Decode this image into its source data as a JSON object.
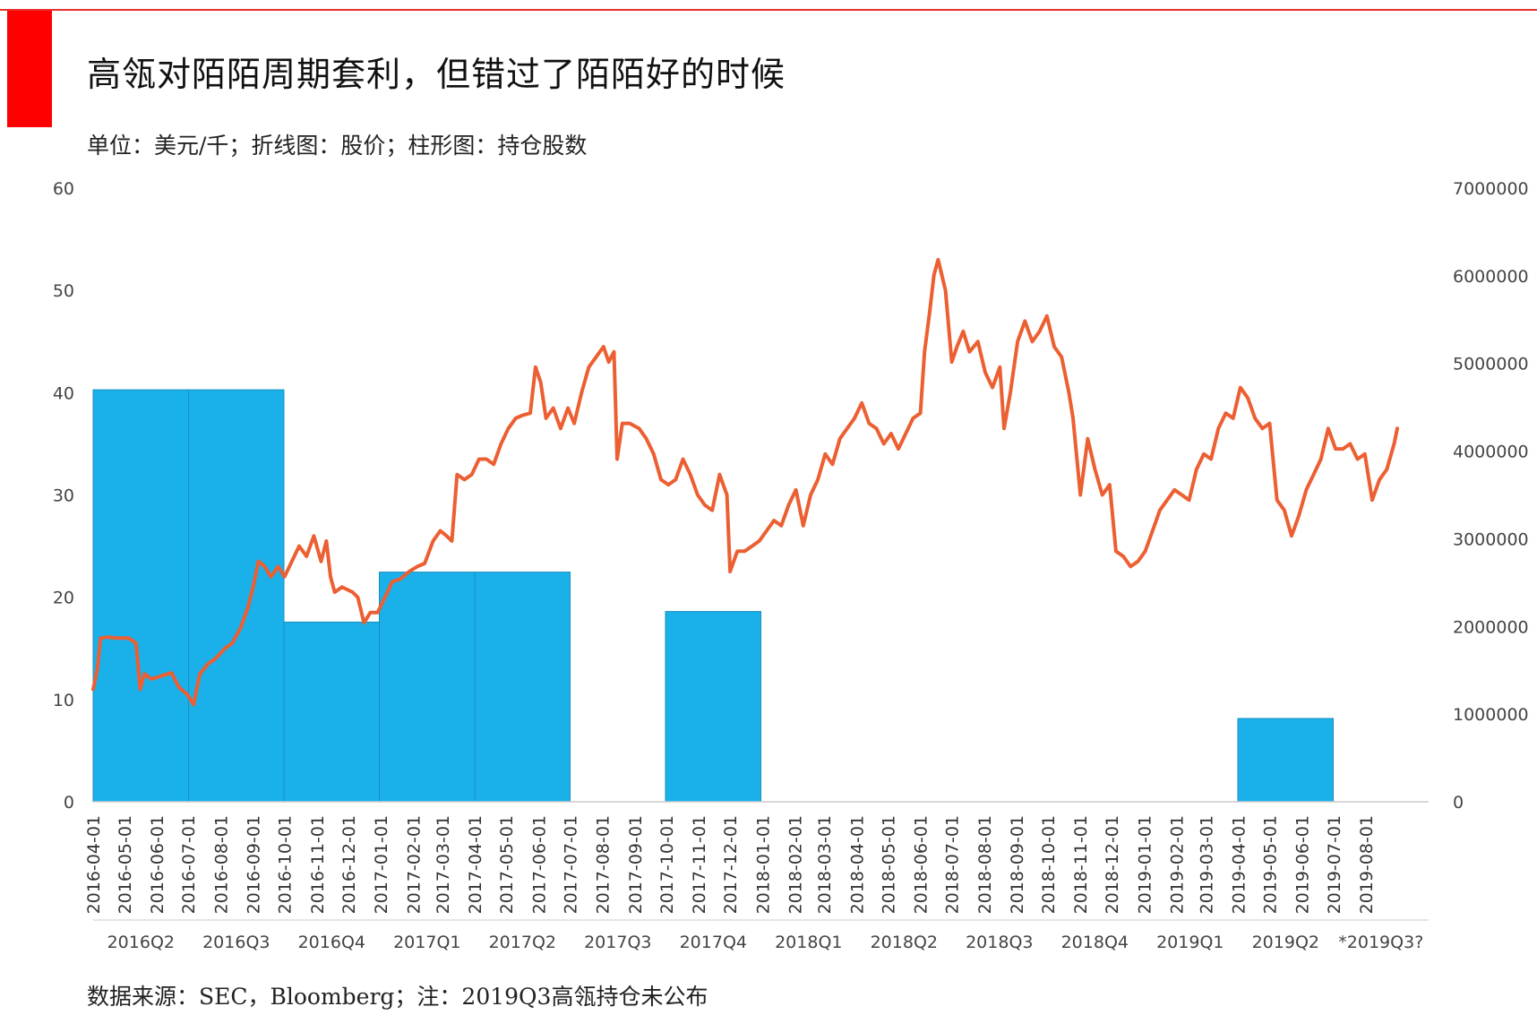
{
  "header": {
    "title": "高瓴对陌陌周期套利，但错过了陌陌好的时候",
    "subtitle": "单位：美元/千；折线图：股价；柱形图：持仓股数"
  },
  "footer": {
    "source": "数据来源：SEC，Bloomberg；注：2019Q3高瓴持仓未公布"
  },
  "colors": {
    "accent_red": "#ff0000",
    "line": "#ec5f32",
    "bar": "#1ab0ea"
  },
  "chart_data": {
    "type": "bar+line",
    "y_left": {
      "ticks": [
        "0",
        "10",
        "20",
        "30",
        "40",
        "50",
        "60"
      ],
      "range": [
        0,
        60
      ]
    },
    "y_right": {
      "ticks": [
        "0",
        "1000000",
        "2000000",
        "3000000",
        "4000000",
        "5000000",
        "6000000",
        "7000000"
      ],
      "range": [
        0,
        7000000
      ]
    },
    "dates": [
      "2016-04-01",
      "2016-05-01",
      "2016-06-01",
      "2016-07-01",
      "2016-08-01",
      "2016-09-01",
      "2016-10-01",
      "2016-11-01",
      "2016-12-01",
      "2017-01-01",
      "2017-02-01",
      "2017-03-01",
      "2017-04-01",
      "2017-05-01",
      "2017-06-01",
      "2017-07-01",
      "2017-08-01",
      "2017-09-01",
      "2017-10-01",
      "2017-11-01",
      "2017-12-01",
      "2018-01-01",
      "2018-02-01",
      "2018-03-01",
      "2018-04-01",
      "2018-05-01",
      "2018-06-01",
      "2018-07-01",
      "2018-08-01",
      "2018-09-01",
      "2018-10-01",
      "2018-11-01",
      "2018-12-01",
      "2019-01-01",
      "2019-02-01",
      "2019-03-01",
      "2019-04-01",
      "2019-05-01",
      "2019-06-01",
      "2019-07-01",
      "2019-08-01"
    ],
    "quarters": [
      "2016Q2",
      "2016Q3",
      "2016Q4",
      "2017Q1",
      "2017Q2",
      "2017Q3",
      "2017Q4",
      "2018Q1",
      "2018Q2",
      "2018Q3",
      "2018Q4",
      "2019Q1",
      "2019Q2",
      "*2019Q3?"
    ],
    "bar_series": {
      "axis": "right",
      "values": [
        4700000,
        4700000,
        2050000,
        2620000,
        2620000,
        0,
        2170000,
        0,
        0,
        0,
        0,
        0,
        950000,
        null
      ]
    },
    "line_series": {
      "axis": "left",
      "points": [
        [
          "2016-04-01",
          11.0
        ],
        [
          "2016-04-05",
          13.0
        ],
        [
          "2016-04-08",
          16.0
        ],
        [
          "2016-04-15",
          16.1
        ],
        [
          "2016-04-25",
          16.0
        ],
        [
          "2016-05-05",
          16.0
        ],
        [
          "2016-05-12",
          15.5
        ],
        [
          "2016-05-16",
          11.0
        ],
        [
          "2016-05-20",
          12.5
        ],
        [
          "2016-05-27",
          12.0
        ],
        [
          "2016-06-05",
          12.3
        ],
        [
          "2016-06-15",
          12.6
        ],
        [
          "2016-06-22",
          11.2
        ],
        [
          "2016-06-30",
          10.5
        ],
        [
          "2016-07-06",
          9.5
        ],
        [
          "2016-07-12",
          12.5
        ],
        [
          "2016-07-20",
          13.5
        ],
        [
          "2016-07-27",
          14.0
        ],
        [
          "2016-08-05",
          15.0
        ],
        [
          "2016-08-12",
          15.5
        ],
        [
          "2016-08-20",
          17.0
        ],
        [
          "2016-08-27",
          19.0
        ],
        [
          "2016-09-01",
          21.0
        ],
        [
          "2016-09-06",
          23.5
        ],
        [
          "2016-09-12",
          23.0
        ],
        [
          "2016-09-18",
          22.0
        ],
        [
          "2016-09-25",
          23.0
        ],
        [
          "2016-10-01",
          22.0
        ],
        [
          "2016-10-08",
          23.5
        ],
        [
          "2016-10-15",
          25.0
        ],
        [
          "2016-10-22",
          24.0
        ],
        [
          "2016-10-29",
          26.0
        ],
        [
          "2016-11-05",
          23.5
        ],
        [
          "2016-11-10",
          25.5
        ],
        [
          "2016-11-14",
          22.0
        ],
        [
          "2016-11-18",
          20.5
        ],
        [
          "2016-11-25",
          21.0
        ],
        [
          "2016-12-05",
          20.5
        ],
        [
          "2016-12-10",
          20.0
        ],
        [
          "2016-12-16",
          17.5
        ],
        [
          "2016-12-22",
          18.5
        ],
        [
          "2016-12-29",
          18.5
        ],
        [
          "2017-01-05",
          20.0
        ],
        [
          "2017-01-12",
          21.5
        ],
        [
          "2017-01-20",
          21.8
        ],
        [
          "2017-01-28",
          22.5
        ],
        [
          "2017-02-05",
          23.0
        ],
        [
          "2017-02-12",
          23.3
        ],
        [
          "2017-02-20",
          25.5
        ],
        [
          "2017-02-27",
          26.5
        ],
        [
          "2017-03-05",
          26.0
        ],
        [
          "2017-03-10",
          25.5
        ],
        [
          "2017-03-15",
          32.0
        ],
        [
          "2017-03-22",
          31.5
        ],
        [
          "2017-03-29",
          32.0
        ],
        [
          "2017-04-05",
          33.5
        ],
        [
          "2017-04-12",
          33.5
        ],
        [
          "2017-04-19",
          33.0
        ],
        [
          "2017-04-26",
          35.0
        ],
        [
          "2017-05-03",
          36.5
        ],
        [
          "2017-05-10",
          37.5
        ],
        [
          "2017-05-17",
          37.8
        ],
        [
          "2017-05-24",
          38.0
        ],
        [
          "2017-05-29",
          42.5
        ],
        [
          "2017-06-03",
          41.0
        ],
        [
          "2017-06-08",
          37.5
        ],
        [
          "2017-06-15",
          38.5
        ],
        [
          "2017-06-22",
          36.5
        ],
        [
          "2017-06-29",
          38.5
        ],
        [
          "2017-07-05",
          37.0
        ],
        [
          "2017-07-12",
          40.0
        ],
        [
          "2017-07-19",
          42.5
        ],
        [
          "2017-07-26",
          43.5
        ],
        [
          "2017-08-02",
          44.5
        ],
        [
          "2017-08-07",
          43.0
        ],
        [
          "2017-08-12",
          44.0
        ],
        [
          "2017-08-15",
          33.5
        ],
        [
          "2017-08-20",
          37.0
        ],
        [
          "2017-08-27",
          37.0
        ],
        [
          "2017-09-05",
          36.5
        ],
        [
          "2017-09-12",
          35.5
        ],
        [
          "2017-09-19",
          34.0
        ],
        [
          "2017-09-26",
          31.5
        ],
        [
          "2017-10-03",
          31.0
        ],
        [
          "2017-10-10",
          31.5
        ],
        [
          "2017-10-17",
          33.5
        ],
        [
          "2017-10-24",
          32.0
        ],
        [
          "2017-10-31",
          30.0
        ],
        [
          "2017-11-07",
          29.0
        ],
        [
          "2017-11-14",
          28.5
        ],
        [
          "2017-11-21",
          32.0
        ],
        [
          "2017-11-28",
          30.0
        ],
        [
          "2017-12-01",
          22.5
        ],
        [
          "2017-12-08",
          24.5
        ],
        [
          "2017-12-15",
          24.5
        ],
        [
          "2017-12-22",
          25.0
        ],
        [
          "2017-12-29",
          25.5
        ],
        [
          "2018-01-05",
          26.5
        ],
        [
          "2018-01-12",
          27.5
        ],
        [
          "2018-01-19",
          27.0
        ],
        [
          "2018-01-26",
          29.0
        ],
        [
          "2018-02-02",
          30.5
        ],
        [
          "2018-02-09",
          27.0
        ],
        [
          "2018-02-16",
          30.0
        ],
        [
          "2018-02-23",
          31.5
        ],
        [
          "2018-03-02",
          34.0
        ],
        [
          "2018-03-09",
          33.0
        ],
        [
          "2018-03-16",
          35.5
        ],
        [
          "2018-03-23",
          36.5
        ],
        [
          "2018-03-30",
          37.5
        ],
        [
          "2018-04-06",
          39.0
        ],
        [
          "2018-04-13",
          37.0
        ],
        [
          "2018-04-20",
          36.5
        ],
        [
          "2018-04-27",
          35.0
        ],
        [
          "2018-05-04",
          36.0
        ],
        [
          "2018-05-11",
          34.5
        ],
        [
          "2018-05-18",
          36.0
        ],
        [
          "2018-05-25",
          37.5
        ],
        [
          "2018-06-01",
          38.0
        ],
        [
          "2018-06-05",
          44.0
        ],
        [
          "2018-06-10",
          48.0
        ],
        [
          "2018-06-14",
          51.5
        ],
        [
          "2018-06-18",
          53.0
        ],
        [
          "2018-06-25",
          50.0
        ],
        [
          "2018-07-01",
          43.0
        ],
        [
          "2018-07-06",
          44.5
        ],
        [
          "2018-07-12",
          46.0
        ],
        [
          "2018-07-18",
          44.0
        ],
        [
          "2018-07-26",
          45.0
        ],
        [
          "2018-08-02",
          42.0
        ],
        [
          "2018-08-09",
          40.5
        ],
        [
          "2018-08-16",
          42.5
        ],
        [
          "2018-08-20",
          36.5
        ],
        [
          "2018-08-26",
          40.0
        ],
        [
          "2018-09-02",
          45.0
        ],
        [
          "2018-09-09",
          47.0
        ],
        [
          "2018-09-16",
          45.0
        ],
        [
          "2018-09-23",
          46.0
        ],
        [
          "2018-09-30",
          47.5
        ],
        [
          "2018-10-07",
          44.5
        ],
        [
          "2018-10-14",
          43.5
        ],
        [
          "2018-10-21",
          40.0
        ],
        [
          "2018-10-25",
          37.5
        ],
        [
          "2018-11-01",
          30.0
        ],
        [
          "2018-11-08",
          35.5
        ],
        [
          "2018-11-15",
          32.5
        ],
        [
          "2018-11-22",
          30.0
        ],
        [
          "2018-11-29",
          31.0
        ],
        [
          "2018-12-05",
          24.5
        ],
        [
          "2018-12-12",
          24.0
        ],
        [
          "2018-12-19",
          23.0
        ],
        [
          "2018-12-26",
          23.5
        ],
        [
          "2019-01-02",
          24.5
        ],
        [
          "2019-01-09",
          26.5
        ],
        [
          "2019-01-16",
          28.5
        ],
        [
          "2019-01-23",
          29.5
        ],
        [
          "2019-01-30",
          30.5
        ],
        [
          "2019-02-06",
          30.0
        ],
        [
          "2019-02-13",
          29.5
        ],
        [
          "2019-02-20",
          32.5
        ],
        [
          "2019-02-27",
          34.0
        ],
        [
          "2019-03-06",
          33.5
        ],
        [
          "2019-03-13",
          36.5
        ],
        [
          "2019-03-20",
          38.0
        ],
        [
          "2019-03-27",
          37.5
        ],
        [
          "2019-04-03",
          40.5
        ],
        [
          "2019-04-10",
          39.5
        ],
        [
          "2019-04-17",
          37.5
        ],
        [
          "2019-04-24",
          36.5
        ],
        [
          "2019-05-01",
          37.0
        ],
        [
          "2019-05-08",
          29.5
        ],
        [
          "2019-05-15",
          28.5
        ],
        [
          "2019-05-22",
          26.0
        ],
        [
          "2019-05-29",
          28.0
        ],
        [
          "2019-06-05",
          30.5
        ],
        [
          "2019-06-12",
          32.0
        ],
        [
          "2019-06-19",
          33.5
        ],
        [
          "2019-06-26",
          36.5
        ],
        [
          "2019-07-03",
          34.5
        ],
        [
          "2019-07-10",
          34.5
        ],
        [
          "2019-07-17",
          35.0
        ],
        [
          "2019-07-24",
          33.5
        ],
        [
          "2019-07-31",
          34.0
        ],
        [
          "2019-08-07",
          29.5
        ],
        [
          "2019-08-14",
          31.5
        ],
        [
          "2019-08-21",
          32.5
        ],
        [
          "2019-08-28",
          35.0
        ],
        [
          "2019-08-31",
          36.5
        ]
      ]
    }
  }
}
